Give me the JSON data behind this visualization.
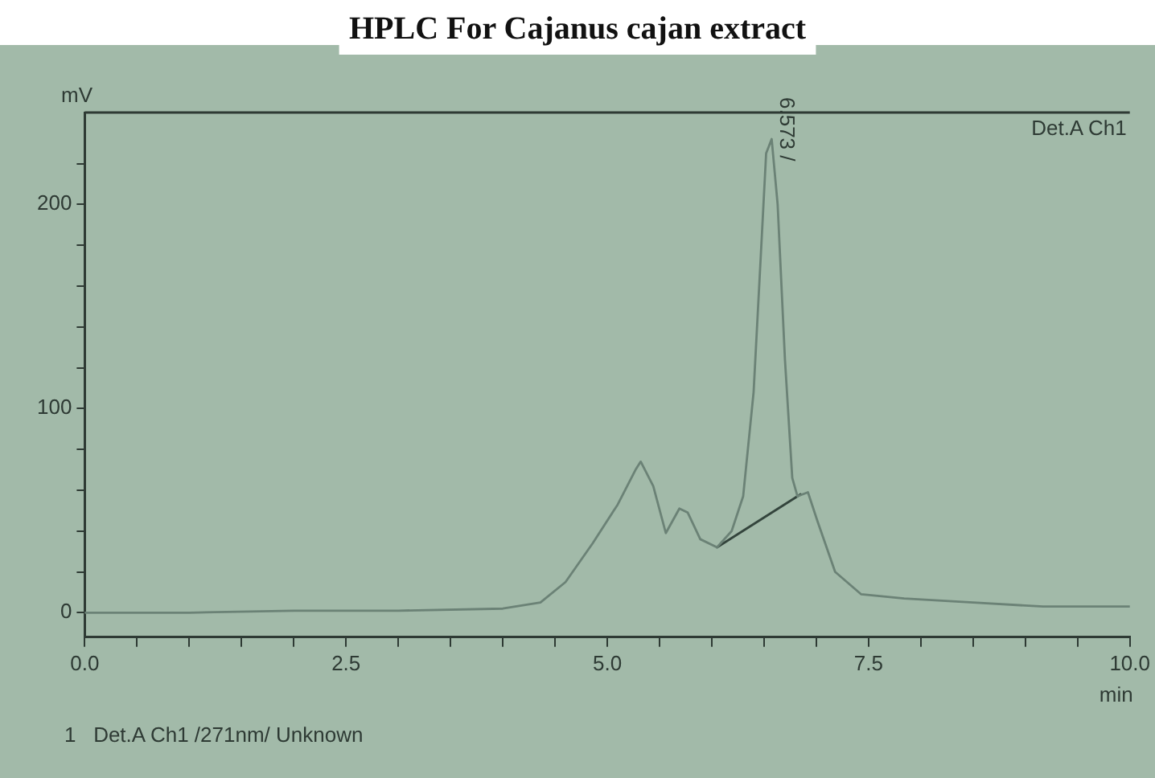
{
  "chart_data": {
    "type": "line",
    "title": "HPLC For Cajanus cajan extract",
    "xlabel": "min",
    "ylabel": "mV",
    "x": [
      0,
      1,
      2,
      3,
      4,
      4.36,
      4.6,
      4.86,
      5.1,
      5.27,
      5.32,
      5.44,
      5.56,
      5.69,
      5.77,
      5.89,
      6.05,
      6.19,
      6.3,
      6.4,
      6.47,
      6.52,
      6.573,
      6.63,
      6.7,
      6.77,
      6.82,
      6.92,
      7.01,
      7.18,
      7.43,
      7.84,
      8.5,
      9.17,
      10
    ],
    "series": [
      {
        "color": "#6b8276",
        "values": [
          0,
          0,
          1,
          1,
          2,
          5,
          15,
          34,
          53,
          70,
          74,
          62,
          39,
          51,
          49,
          36,
          32,
          40,
          57,
          108,
          176,
          225,
          232,
          200,
          124,
          66,
          57,
          59,
          45,
          20,
          9,
          7,
          5,
          3,
          3
        ]
      },
      {
        "type": "line",
        "color": "#33443c",
        "x": [
          6.05,
          6.85
        ],
        "values": [
          32,
          58
        ]
      }
    ],
    "xlim": [
      0,
      10
    ],
    "ylim": [
      -12,
      245
    ],
    "xticks": [
      {
        "value": 0,
        "label": "0.0"
      },
      {
        "value": 0.5,
        "label": null
      },
      {
        "value": 1,
        "label": null
      },
      {
        "value": 1.5,
        "label": null
      },
      {
        "value": 2,
        "label": null
      },
      {
        "value": 2.5,
        "label": "2.5"
      },
      {
        "value": 3,
        "label": null
      },
      {
        "value": 3.5,
        "label": null
      },
      {
        "value": 4,
        "label": null
      },
      {
        "value": 4.5,
        "label": null
      },
      {
        "value": 5,
        "label": "5.0"
      },
      {
        "value": 5.5,
        "label": null
      },
      {
        "value": 6,
        "label": null
      },
      {
        "value": 6.5,
        "label": null
      },
      {
        "value": 7,
        "label": null
      },
      {
        "value": 7.5,
        "label": "7.5"
      },
      {
        "value": 8,
        "label": null
      },
      {
        "value": 8.5,
        "label": null
      },
      {
        "value": 9,
        "label": null
      },
      {
        "value": 9.5,
        "label": null
      },
      {
        "value": 10,
        "label": "10.0"
      }
    ],
    "yticks": [
      0,
      {
        "value": 20,
        "label": null
      },
      {
        "value": 40,
        "label": null
      },
      {
        "value": 60,
        "label": null
      },
      {
        "value": 80,
        "label": null
      },
      100,
      {
        "value": 120,
        "label": null
      },
      {
        "value": 140,
        "label": null
      },
      {
        "value": 160,
        "label": null
      },
      {
        "value": 180,
        "label": null
      },
      200,
      {
        "value": 220,
        "label": null
      }
    ],
    "annotations": [
      "Det.A Ch1",
      {
        "text": "6.573 /",
        "x": 6.573,
        "y": 232
      },
      "1   Det.A Ch1 /271nm/ Unknown"
    ],
    "grid": false,
    "legend": false,
    "marker": "none",
    "line_style": "solid"
  }
}
